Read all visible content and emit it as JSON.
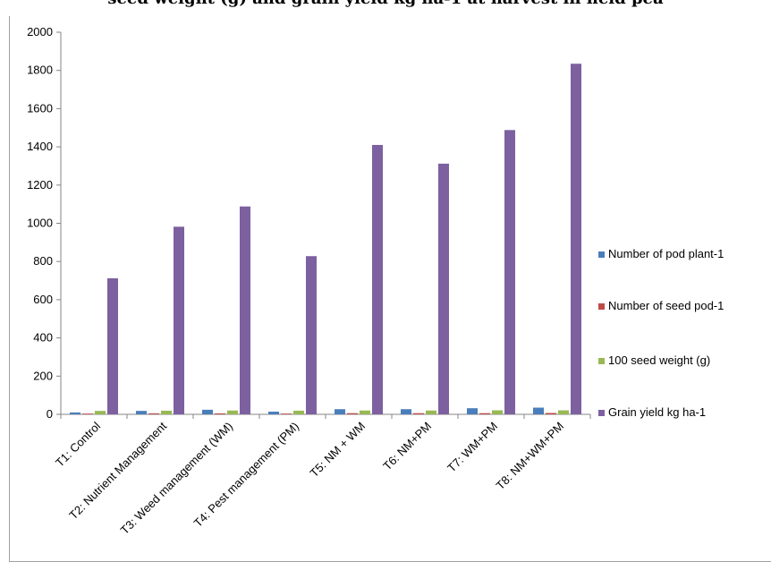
{
  "title": "seed weight (g) and grain yield kg ha-1 at harvest in field pea",
  "chart_data": {
    "type": "bar",
    "categories": [
      "T1: Control",
      "T2: Nutrient Management",
      "T3: Weed management (WM)",
      "T4: Pest management (PM)",
      "T5: NM + WM",
      "T6: NM+PM",
      "T7: WM+PM",
      "T8: NM+WM+PM"
    ],
    "series": [
      {
        "name": "Number of pod plant-1",
        "color": "#4a7ebb",
        "values": [
          10,
          18,
          24,
          14,
          27,
          27,
          32,
          35
        ]
      },
      {
        "name": "Number of seed pod-1",
        "color": "#be4b48",
        "values": [
          4,
          5,
          5,
          4,
          6,
          6,
          6,
          7
        ]
      },
      {
        "name": "100 seed weight (g)",
        "color": "#98b954",
        "values": [
          18,
          19,
          20,
          19,
          20,
          20,
          21,
          21
        ]
      },
      {
        "name": "Grain yield kg ha-1",
        "color": "#7d60a0",
        "values": [
          712,
          982,
          1088,
          828,
          1410,
          1312,
          1488,
          1835
        ]
      }
    ],
    "ylim": [
      0,
      2000
    ],
    "yticks": [
      0,
      200,
      400,
      600,
      800,
      1000,
      1200,
      1400,
      1600,
      1800,
      2000
    ],
    "grid": false,
    "legend": "right"
  }
}
